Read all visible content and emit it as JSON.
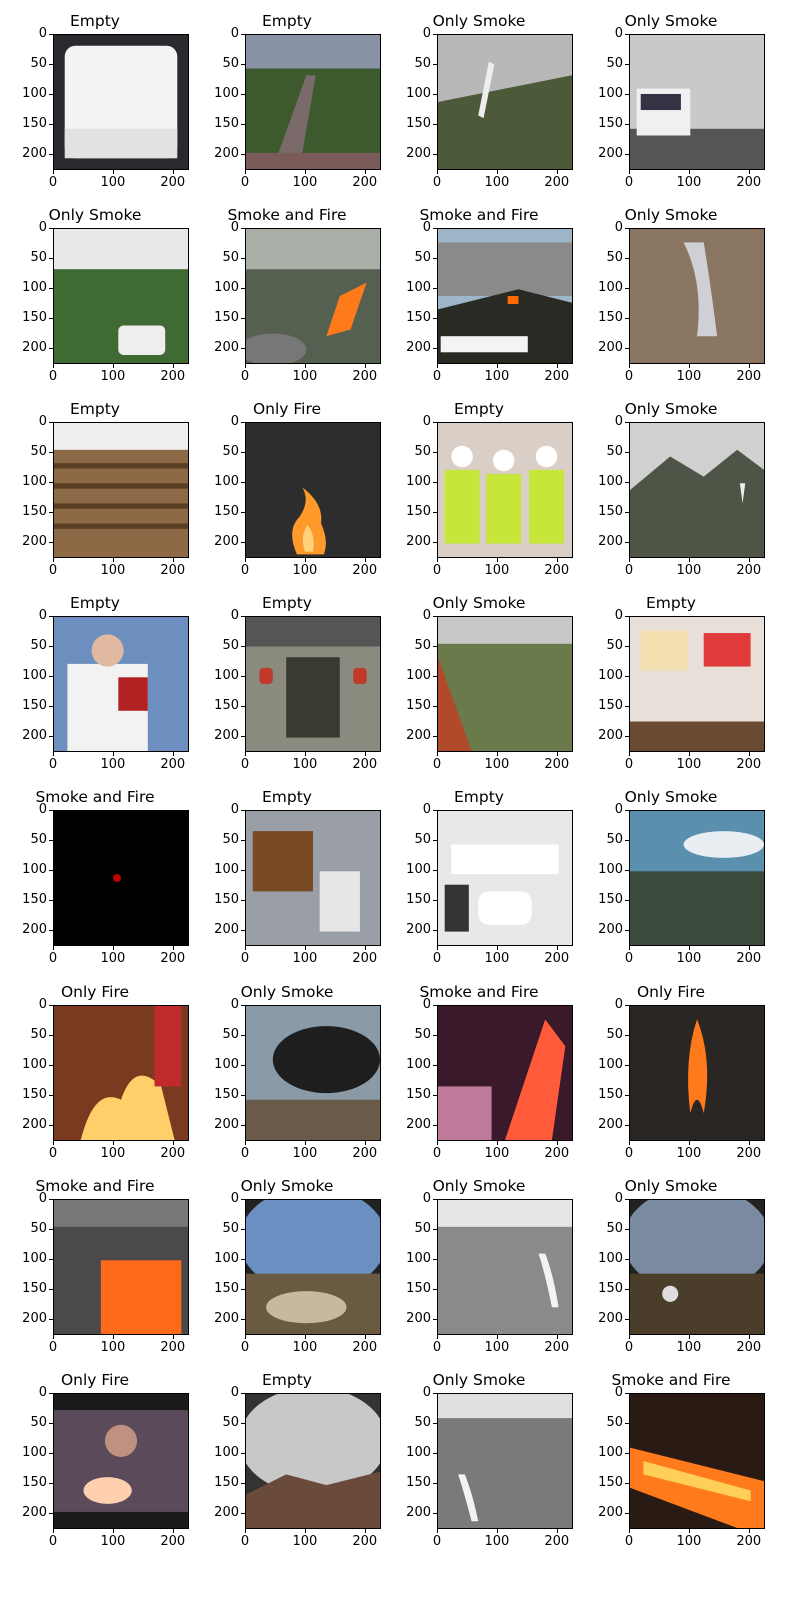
{
  "panels": [
    {
      "title": "Empty",
      "scene": "white-box"
    },
    {
      "title": "Empty",
      "scene": "aerial-forest"
    },
    {
      "title": "Only Smoke",
      "scene": "hill-smoke"
    },
    {
      "title": "Only Smoke",
      "scene": "truck-smoke"
    },
    {
      "title": "Only Smoke",
      "scene": "trees-car"
    },
    {
      "title": "Smoke and Fire",
      "scene": "aerial-fire"
    },
    {
      "title": "Smoke and Fire",
      "scene": "hillside-fire-banner"
    },
    {
      "title": "Only Smoke",
      "scene": "canyon-smoke"
    },
    {
      "title": "Empty",
      "scene": "auditorium"
    },
    {
      "title": "Only Fire",
      "scene": "dark-flame"
    },
    {
      "title": "Empty",
      "scene": "three-workers"
    },
    {
      "title": "Only Smoke",
      "scene": "mountain-smoke"
    },
    {
      "title": "Empty",
      "scene": "person-jacket"
    },
    {
      "title": "Empty",
      "scene": "gate-lanterns"
    },
    {
      "title": "Only Smoke",
      "scene": "roof-trees"
    },
    {
      "title": "Empty",
      "scene": "shelf-posters"
    },
    {
      "title": "Smoke and Fire",
      "scene": "black-red-dot"
    },
    {
      "title": "Empty",
      "scene": "room-cctv"
    },
    {
      "title": "Empty",
      "scene": "google-booth"
    },
    {
      "title": "Only Smoke",
      "scene": "sky-landscape"
    },
    {
      "title": "Only Fire",
      "scene": "flag-fire"
    },
    {
      "title": "Only Smoke",
      "scene": "black-smoke-factory"
    },
    {
      "title": "Smoke and Fire",
      "scene": "pink-fire"
    },
    {
      "title": "Only Fire",
      "scene": "dark-fire-column"
    },
    {
      "title": "Smoke and Fire",
      "scene": "building-fire"
    },
    {
      "title": "Only Smoke",
      "scene": "fisheye-rocks"
    },
    {
      "title": "Only Smoke",
      "scene": "city-smoke"
    },
    {
      "title": "Only Smoke",
      "scene": "fisheye-hill"
    },
    {
      "title": "Only Fire",
      "scene": "person-fire"
    },
    {
      "title": "Empty",
      "scene": "cloudy-mountains"
    },
    {
      "title": "Only Smoke",
      "scene": "town-smoke"
    },
    {
      "title": "Smoke and Fire",
      "scene": "night-wildfire"
    }
  ],
  "axes": {
    "y_ticks": [
      "0",
      "50",
      "100",
      "150",
      "200"
    ],
    "x_ticks": [
      "0",
      "100",
      "200"
    ]
  }
}
